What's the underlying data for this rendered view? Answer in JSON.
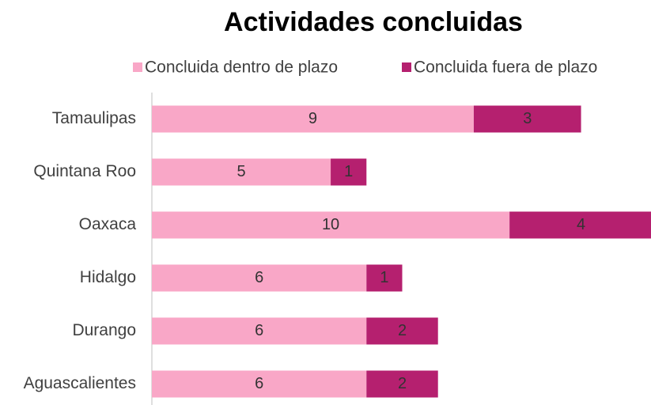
{
  "chart_data": {
    "type": "stacked_bar_horizontal",
    "title": "Actividades concluidas",
    "categories": [
      "Tamaulipas",
      "Quintana Roo",
      "Oaxaca",
      "Hidalgo",
      "Durango",
      "Aguascalientes"
    ],
    "series": [
      {
        "name": "Concluida dentro de plazo",
        "color": "#f9a7c7",
        "values": [
          9,
          5,
          10,
          6,
          6,
          6
        ]
      },
      {
        "name": "Concluida fuera de plazo",
        "color": "#b5206f",
        "values": [
          3,
          1,
          4,
          1,
          2,
          2
        ]
      }
    ],
    "xlim": [
      0,
      14
    ]
  }
}
